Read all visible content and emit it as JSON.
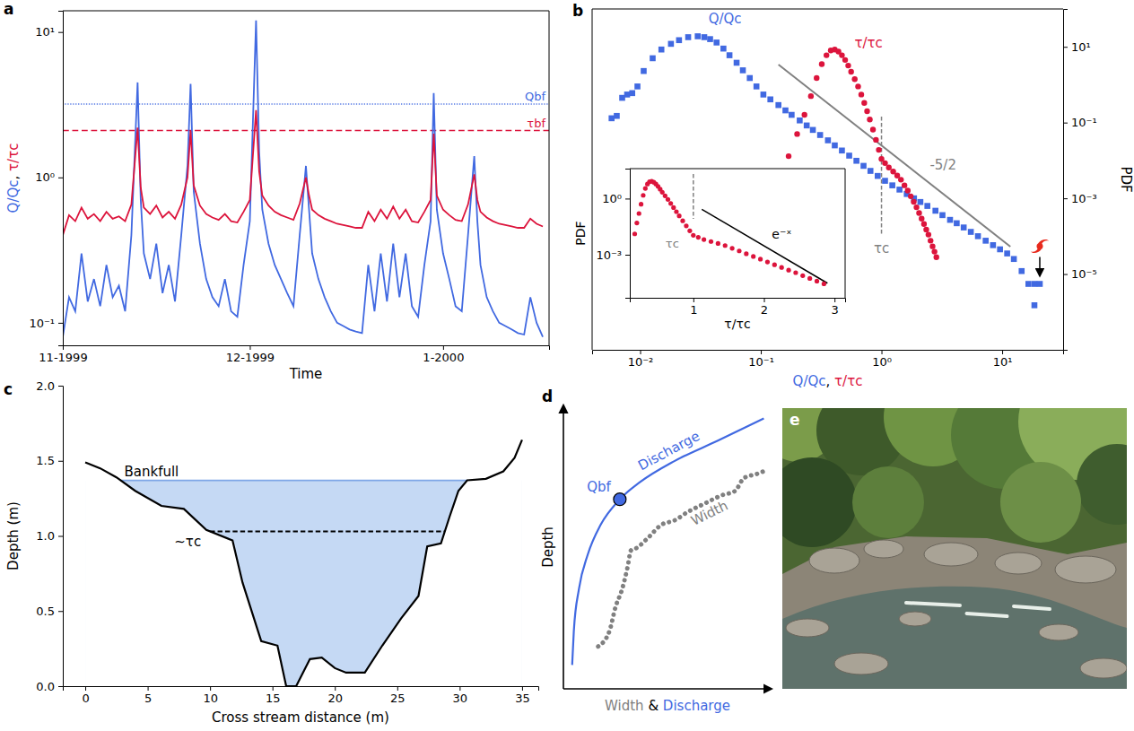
{
  "chart_data": [
    {
      "type": "line",
      "title": "a",
      "xlabel": "Time",
      "ylabel": "Q/Qc, τ/τc",
      "log": "y",
      "x": [
        0,
        1,
        2,
        3,
        4,
        5,
        6,
        7,
        8,
        9,
        10,
        11,
        12,
        12.5,
        13,
        14,
        15,
        16,
        17,
        18,
        19,
        20,
        20.5,
        21,
        22,
        23,
        24,
        25,
        26,
        27,
        28,
        29,
        30,
        31,
        31.5,
        32,
        33,
        34,
        35,
        36,
        37,
        38,
        39,
        39.5,
        40,
        41,
        42,
        43,
        44,
        45,
        46,
        47,
        48,
        49,
        50,
        51,
        52,
        53,
        54,
        55,
        56,
        57,
        58,
        59,
        59.5,
        60,
        61,
        62,
        63,
        64,
        65,
        66,
        66.5,
        67,
        68,
        69,
        70,
        71,
        72,
        73,
        74,
        75,
        76,
        77
      ],
      "xlim": [
        0,
        78
      ],
      "xticks": [
        {
          "value": 0,
          "label": "11-1999"
        },
        {
          "value": 30,
          "label": "12-1999"
        },
        {
          "value": 61,
          "label": "1-2000"
        }
      ],
      "ylim": [
        0.07,
        14
      ],
      "yticks": [
        {
          "value": 0.1,
          "label": "10⁻¹"
        },
        {
          "value": 1,
          "label": "10⁰"
        },
        {
          "value": 10,
          "label": "10¹"
        }
      ],
      "series": [
        {
          "color": "#4169e1",
          "values": [
            0.08,
            0.15,
            0.12,
            0.3,
            0.14,
            0.2,
            0.13,
            0.25,
            0.15,
            0.18,
            0.12,
            0.4,
            4.5,
            0.7,
            0.3,
            0.2,
            0.35,
            0.16,
            0.25,
            0.14,
            0.4,
            1.2,
            4.4,
            0.8,
            0.35,
            0.2,
            0.15,
            0.13,
            0.2,
            0.12,
            0.11,
            0.25,
            0.5,
            12,
            1.5,
            0.6,
            0.35,
            0.25,
            0.2,
            0.16,
            0.13,
            0.4,
            1.2,
            0.6,
            0.3,
            0.2,
            0.15,
            0.12,
            0.1,
            0.095,
            0.09,
            0.087,
            0.085,
            0.25,
            0.12,
            0.3,
            0.14,
            0.35,
            0.15,
            0.3,
            0.13,
            0.11,
            0.25,
            0.5,
            3.8,
            0.6,
            0.3,
            0.2,
            0.13,
            0.12,
            0.4,
            1.4,
            0.5,
            0.25,
            0.15,
            0.12,
            0.1,
            0.095,
            0.09,
            0.085,
            0.083,
            0.15,
            0.1,
            0.08
          ]
        },
        {
          "color": "#dc143c",
          "values": [
            0.4,
            0.55,
            0.5,
            0.62,
            0.52,
            0.56,
            0.5,
            0.58,
            0.52,
            0.54,
            0.5,
            0.65,
            2.2,
            0.85,
            0.62,
            0.56,
            0.64,
            0.53,
            0.58,
            0.52,
            0.65,
            1.0,
            2.1,
            0.88,
            0.64,
            0.56,
            0.53,
            0.51,
            0.56,
            0.5,
            0.49,
            0.58,
            0.7,
            2.9,
            1.1,
            0.75,
            0.64,
            0.58,
            0.55,
            0.53,
            0.51,
            0.66,
            1.0,
            0.75,
            0.6,
            0.55,
            0.52,
            0.5,
            0.48,
            0.47,
            0.46,
            0.45,
            0.45,
            0.58,
            0.5,
            0.6,
            0.52,
            0.63,
            0.52,
            0.6,
            0.5,
            0.49,
            0.58,
            0.7,
            2.0,
            0.75,
            0.6,
            0.55,
            0.51,
            0.5,
            0.65,
            1.05,
            0.7,
            0.58,
            0.53,
            0.5,
            0.48,
            0.47,
            0.46,
            0.45,
            0.45,
            0.52,
            0.48,
            0.46
          ]
        }
      ],
      "hlines": [
        {
          "y": 3.2,
          "label": "Qbf",
          "color": "#4169e1",
          "line_style": "dotted"
        },
        {
          "y": 2.1,
          "label": "τbf",
          "color": "#dc143c",
          "line_style": "dashed"
        }
      ]
    },
    {
      "type": "scatter",
      "title": "b",
      "xlabel": "Q/Qc, τ/τc",
      "ylabel": "PDF",
      "log": true,
      "xlim": [
        0.004,
        32
      ],
      "xticks": [
        {
          "value": 0.01,
          "label": "10⁻²"
        },
        {
          "value": 0.1,
          "label": "10⁻¹"
        },
        {
          "value": 1,
          "label": "10⁰"
        },
        {
          "value": 10,
          "label": "10¹"
        }
      ],
      "ylim": [
        1e-07,
        100
      ],
      "yticks": [
        {
          "value": 10,
          "label": "10¹"
        },
        {
          "value": 0.1,
          "label": "10⁻¹"
        },
        {
          "value": 0.001,
          "label": "10⁻³"
        },
        {
          "value": 1e-05,
          "label": "10⁻⁵"
        }
      ],
      "series": [
        {
          "name": "Q/Qc",
          "color": "#4169e1",
          "marker": "square",
          "x": [
            0.0058,
            0.0064,
            0.0071,
            0.0078,
            0.0086,
            0.0095,
            0.0107,
            0.0127,
            0.015,
            0.018,
            0.021,
            0.025,
            0.03,
            0.034,
            0.038,
            0.043,
            0.049,
            0.055,
            0.063,
            0.071,
            0.081,
            0.092,
            0.105,
            0.12,
            0.14,
            0.16,
            0.18,
            0.21,
            0.24,
            0.27,
            0.31,
            0.36,
            0.41,
            0.47,
            0.54,
            0.62,
            0.71,
            0.81,
            0.93,
            1.07,
            1.23,
            1.41,
            1.62,
            1.86,
            2.1,
            2.4,
            2.8,
            3.2,
            3.7,
            4.2,
            4.8,
            5.5,
            6.3,
            7.3,
            8.4,
            9.6,
            11,
            12.5,
            14.5,
            16.5,
            18.5,
            20.5,
            18.5
          ],
          "values": [
            0.13,
            0.15,
            0.45,
            0.55,
            0.6,
            0.9,
            2.3,
            5,
            8.5,
            12,
            15,
            18,
            19,
            18,
            16,
            13,
            9,
            6,
            3.8,
            2.4,
            1.5,
            0.9,
            0.55,
            0.41,
            0.29,
            0.21,
            0.16,
            0.114,
            0.084,
            0.064,
            0.047,
            0.034,
            0.025,
            0.0183,
            0.0134,
            0.0098,
            0.0072,
            0.0053,
            0.0039,
            0.0029,
            0.0022,
            0.0017,
            0.0013,
            0.001,
            0.0008,
            0.00063,
            0.00047,
            0.00036,
            0.00027,
            0.00022,
            0.00017,
            0.00013,
            0.0001,
            7.6e-05,
            5.8e-05,
            4.5e-05,
            3.5e-05,
            2.5e-05,
            1.2e-05,
            5.5e-06,
            5.5e-06,
            5.5e-06,
            1.5e-06
          ]
        },
        {
          "name": "τ/τc",
          "color": "#dc143c",
          "marker": "circle",
          "x": [
            0.17,
            0.2,
            0.23,
            0.26,
            0.29,
            0.32,
            0.35,
            0.38,
            0.41,
            0.44,
            0.47,
            0.5,
            0.53,
            0.56,
            0.6,
            0.64,
            0.68,
            0.72,
            0.76,
            0.8,
            0.85,
            0.9,
            0.95,
            1.0,
            1.07,
            1.15,
            1.25,
            1.35,
            1.45,
            1.55,
            1.65,
            1.75,
            1.85,
            1.95,
            2.05,
            2.15,
            2.25,
            2.35,
            2.45,
            2.55,
            2.65,
            2.75,
            2.85
          ],
          "values": [
            0.013,
            0.05,
            0.16,
            0.5,
            1.5,
            3.5,
            6,
            8,
            8.5,
            7.5,
            6,
            4.5,
            3.2,
            2.2,
            1.4,
            0.9,
            0.55,
            0.33,
            0.2,
            0.12,
            0.065,
            0.035,
            0.019,
            0.011,
            0.0085,
            0.0065,
            0.0051,
            0.004,
            0.0031,
            0.0022,
            0.0016,
            0.00113,
            0.00081,
            0.00058,
            0.00041,
            0.00029,
            0.00021,
            0.00015,
            0.00011,
            7.6e-05,
            5.4e-05,
            3.9e-05,
            2.8e-05
          ]
        }
      ],
      "slope_line": {
        "x": [
          0.14,
          11.7
        ],
        "y": [
          3.4,
          5.3e-05
        ],
        "label": "-5/2",
        "color": "#808080"
      },
      "vline": {
        "x": 1,
        "label": "τc",
        "color": "#808080"
      }
    },
    {
      "type": "scatter",
      "xlabel": "τ/τc",
      "ylabel": "PDF",
      "log": "y",
      "xlim": [
        0.1,
        3.15
      ],
      "xticks": [
        1,
        2,
        3
      ],
      "ylim": [
        5e-06,
        40
      ],
      "yticks": [
        {
          "value": 1,
          "label": "10⁰"
        },
        {
          "value": 0.001,
          "label": "10⁻³"
        }
      ],
      "series": [
        {
          "color": "#dc143c",
          "marker": "circle",
          "x": [
            0.17,
            0.2,
            0.23,
            0.26,
            0.29,
            0.32,
            0.35,
            0.38,
            0.41,
            0.44,
            0.47,
            0.5,
            0.53,
            0.56,
            0.6,
            0.64,
            0.68,
            0.72,
            0.76,
            0.8,
            0.85,
            0.9,
            0.95,
            1.0,
            1.07,
            1.15,
            1.25,
            1.35,
            1.45,
            1.55,
            1.65,
            1.75,
            1.85,
            1.95,
            2.05,
            2.15,
            2.25,
            2.35,
            2.45,
            2.55,
            2.65,
            2.75,
            2.85
          ],
          "values": [
            0.013,
            0.05,
            0.16,
            0.5,
            1.5,
            3.5,
            6,
            8,
            8.5,
            7.5,
            6,
            4.5,
            3.2,
            2.2,
            1.4,
            0.9,
            0.55,
            0.33,
            0.2,
            0.12,
            0.065,
            0.035,
            0.019,
            0.011,
            0.0085,
            0.0065,
            0.0051,
            0.004,
            0.0031,
            0.0022,
            0.0016,
            0.00113,
            0.00081,
            0.00058,
            0.00041,
            0.00029,
            0.00021,
            0.00015,
            0.00011,
            7.6e-05,
            5.4e-05,
            3.9e-05,
            2.8e-05
          ]
        }
      ],
      "fit_line": {
        "x": [
          1.12,
          2.9
        ],
        "y": [
          0.27,
          3e-05
        ],
        "label": "e⁻ˣ",
        "color": "#000000"
      },
      "vline": {
        "x": 1,
        "label": "τc",
        "color": "#808080"
      }
    },
    {
      "type": "line",
      "title": "c",
      "xlabel": "Cross stream distance (m)",
      "ylabel": "Depth (m)",
      "color": "#000000",
      "x": [
        0,
        1.2,
        2.5,
        4,
        6.1,
        7.9,
        9.7,
        11.8,
        12.6,
        14.1,
        15.4,
        16.1,
        16.9,
        18,
        18.95,
        20,
        20.9,
        22.4,
        23.8,
        25.3,
        26.7,
        27.4,
        28.5,
        29.2,
        29.9,
        30.6,
        32.1,
        33.5,
        34.4,
        35
      ],
      "values": [
        1.49,
        1.45,
        1.39,
        1.3,
        1.2,
        1.18,
        1.04,
        0.97,
        0.69,
        0.3,
        0.27,
        0,
        0,
        0.18,
        0.19,
        0.12,
        0.09,
        0.09,
        0.27,
        0.45,
        0.6,
        0.93,
        0.95,
        1.13,
        1.3,
        1.37,
        1.38,
        1.43,
        1.52,
        1.64
      ],
      "xlim": [
        -1.8,
        36.3
      ],
      "xticks": [
        0,
        5,
        10,
        15,
        20,
        25,
        30,
        35
      ],
      "ylim": [
        0,
        2.0
      ],
      "yticks": [
        {
          "value": 0,
          "label": "0.0"
        },
        0.5,
        {
          "value": 1,
          "label": "1.0"
        },
        1.5,
        {
          "value": 2,
          "label": "2.0"
        }
      ],
      "hlines": [
        {
          "y": 1.37,
          "label": "Bankfull",
          "color": "#7fa7e6",
          "line_style": "solid"
        },
        {
          "y": 1.03,
          "label": "~τc",
          "color": "#000000",
          "line_style": "dashed"
        }
      ]
    },
    {
      "type": "line",
      "title": "d",
      "xlabel": "Width & Discharge",
      "ylabel": "Depth",
      "tick_labels": false,
      "xlim": [
        0,
        1
      ],
      "ylim": [
        0,
        1.15
      ],
      "series": [
        {
          "name": "Discharge",
          "color": "#4169e1",
          "line_style": "solid",
          "x": [
            0.042,
            0.05,
            0.075,
            0.117,
            0.179,
            0.271,
            0.367,
            0.533,
            0.742,
            0.963
          ],
          "values": [
            0.097,
            0.234,
            0.407,
            0.545,
            0.666,
            0.769,
            0.838,
            0.924,
            1.007,
            1.097
          ]
        },
        {
          "name": "Width",
          "color": "#808080",
          "line_style": "dotted",
          "x": [
            0.167,
            0.221,
            0.25,
            0.283,
            0.308,
            0.325,
            0.346,
            0.408,
            0.471,
            0.533,
            0.596,
            0.679,
            0.763,
            0.825,
            0.867,
            0.929,
            0.963
          ],
          "values": [
            0.172,
            0.234,
            0.331,
            0.407,
            0.493,
            0.562,
            0.569,
            0.614,
            0.666,
            0.683,
            0.717,
            0.752,
            0.786,
            0.803,
            0.855,
            0.872,
            0.883
          ]
        }
      ],
      "points": [
        {
          "x": 0.271,
          "y": 0.769,
          "label": "Qbf",
          "color": "#4169e1"
        }
      ]
    },
    {
      "type": "image",
      "title": "e"
    }
  ]
}
